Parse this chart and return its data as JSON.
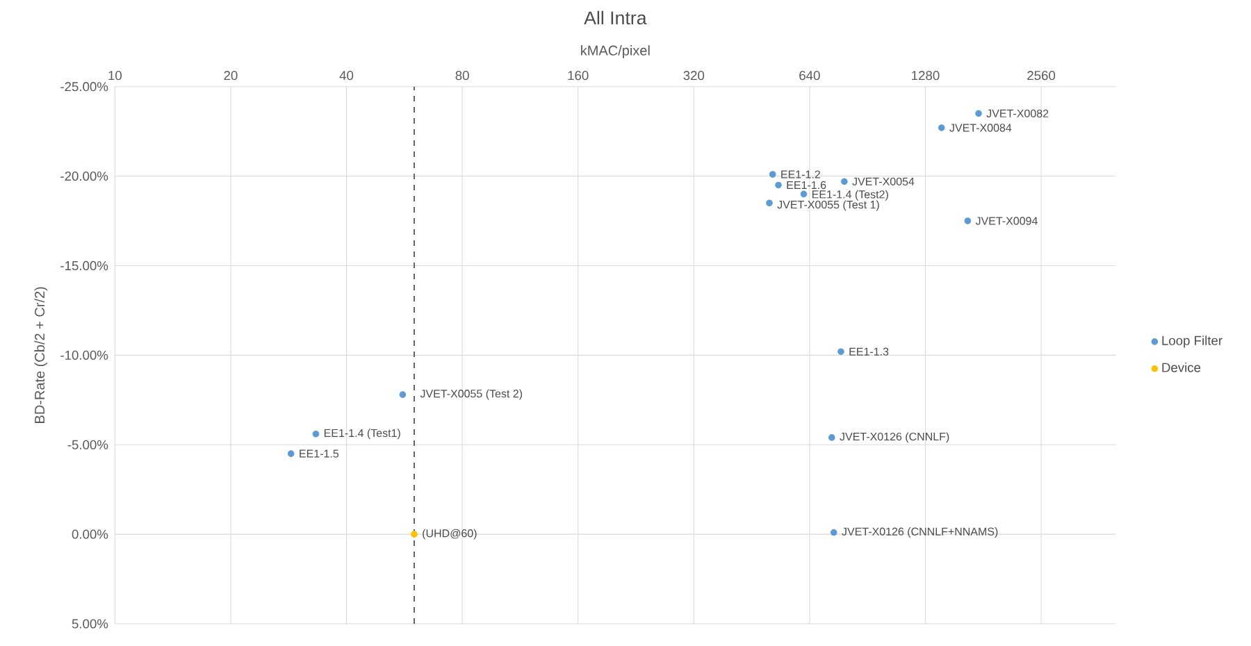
{
  "chart_data": {
    "type": "scatter",
    "title": "All Intra",
    "xlabel": "kMAC/pixel",
    "ylabel": "BD-Rate (Cb/2 + Cr/2)",
    "log": "x",
    "grid": true,
    "legend": "right",
    "marker": "circle",
    "xlim": [
      10,
      4000
    ],
    "xticks": [
      10,
      20,
      40,
      80,
      160,
      320,
      640,
      1280,
      2560
    ],
    "ylim": [
      5,
      -25
    ],
    "yticks": [
      {
        "value": -25,
        "label": "-25.00%"
      },
      {
        "value": -20,
        "label": "-20.00%"
      },
      {
        "value": -15,
        "label": "-15.00%"
      },
      {
        "value": -10,
        "label": "-10.00%"
      },
      {
        "value": -5,
        "label": "-5.00%"
      },
      {
        "value": 0,
        "label": "0.00%"
      },
      {
        "value": 5,
        "label": "5.00%"
      }
    ],
    "series": [
      {
        "name": "Loop Filter",
        "color": "#5b9bd5",
        "x": [
          1760,
          1410,
          513,
          531,
          618,
          788,
          503,
          1649,
          772,
          731,
          740,
          56,
          33.3,
          28.7
        ],
        "values": [
          -23.5,
          -22.7,
          -20.1,
          -19.5,
          -19.0,
          -19.7,
          -18.5,
          -17.5,
          -10.2,
          -5.4,
          -0.1,
          -7.8,
          -5.6,
          -4.5
        ]
      },
      {
        "name": "Device",
        "color": "#ffc000",
        "x": [
          60
        ],
        "values": [
          0
        ]
      }
    ],
    "ref_lines": [
      {
        "axis": "x",
        "value": 60,
        "color": "#595959",
        "line_style": "dashed"
      }
    ],
    "annotations": [
      {
        "text": "JVET-X0082",
        "x": 1760,
        "y": -23.5
      },
      {
        "text": "JVET-X0084",
        "x": 1410,
        "y": -22.7
      },
      {
        "text": "EE1-1.2",
        "x": 513,
        "y": -20.1
      },
      {
        "text": "EE1-1.6",
        "x": 531,
        "y": -19.5
      },
      {
        "text": "EE1-1.4 (Test2)",
        "x": 618,
        "y": -19.0
      },
      {
        "text": "JVET-X0054",
        "x": 788,
        "y": -19.7
      },
      {
        "text": "JVET-X0055 (Test 1)",
        "x": 503,
        "y": -18.5
      },
      {
        "text": "JVET-X0094",
        "x": 1649,
        "y": -17.5
      },
      {
        "text": "EE1-1.3",
        "x": 772,
        "y": -10.2
      },
      {
        "text": "JVET-X0126 (CNNLF)",
        "x": 731,
        "y": -5.4
      },
      {
        "text": "JVET-X0126 (CNNLF+NNAMS)",
        "x": 740,
        "y": -0.1
      },
      {
        "text": "JVET-X0055 (Test 2)",
        "x": 56,
        "y": -7.8
      },
      {
        "text": "EE1-1.4 (Test1)",
        "x": 33.3,
        "y": -5.6
      },
      {
        "text": "EE1-1.5",
        "x": 28.7,
        "y": -4.5
      },
      {
        "text": "(UHD@60)",
        "x": 60,
        "y": 0
      }
    ]
  }
}
